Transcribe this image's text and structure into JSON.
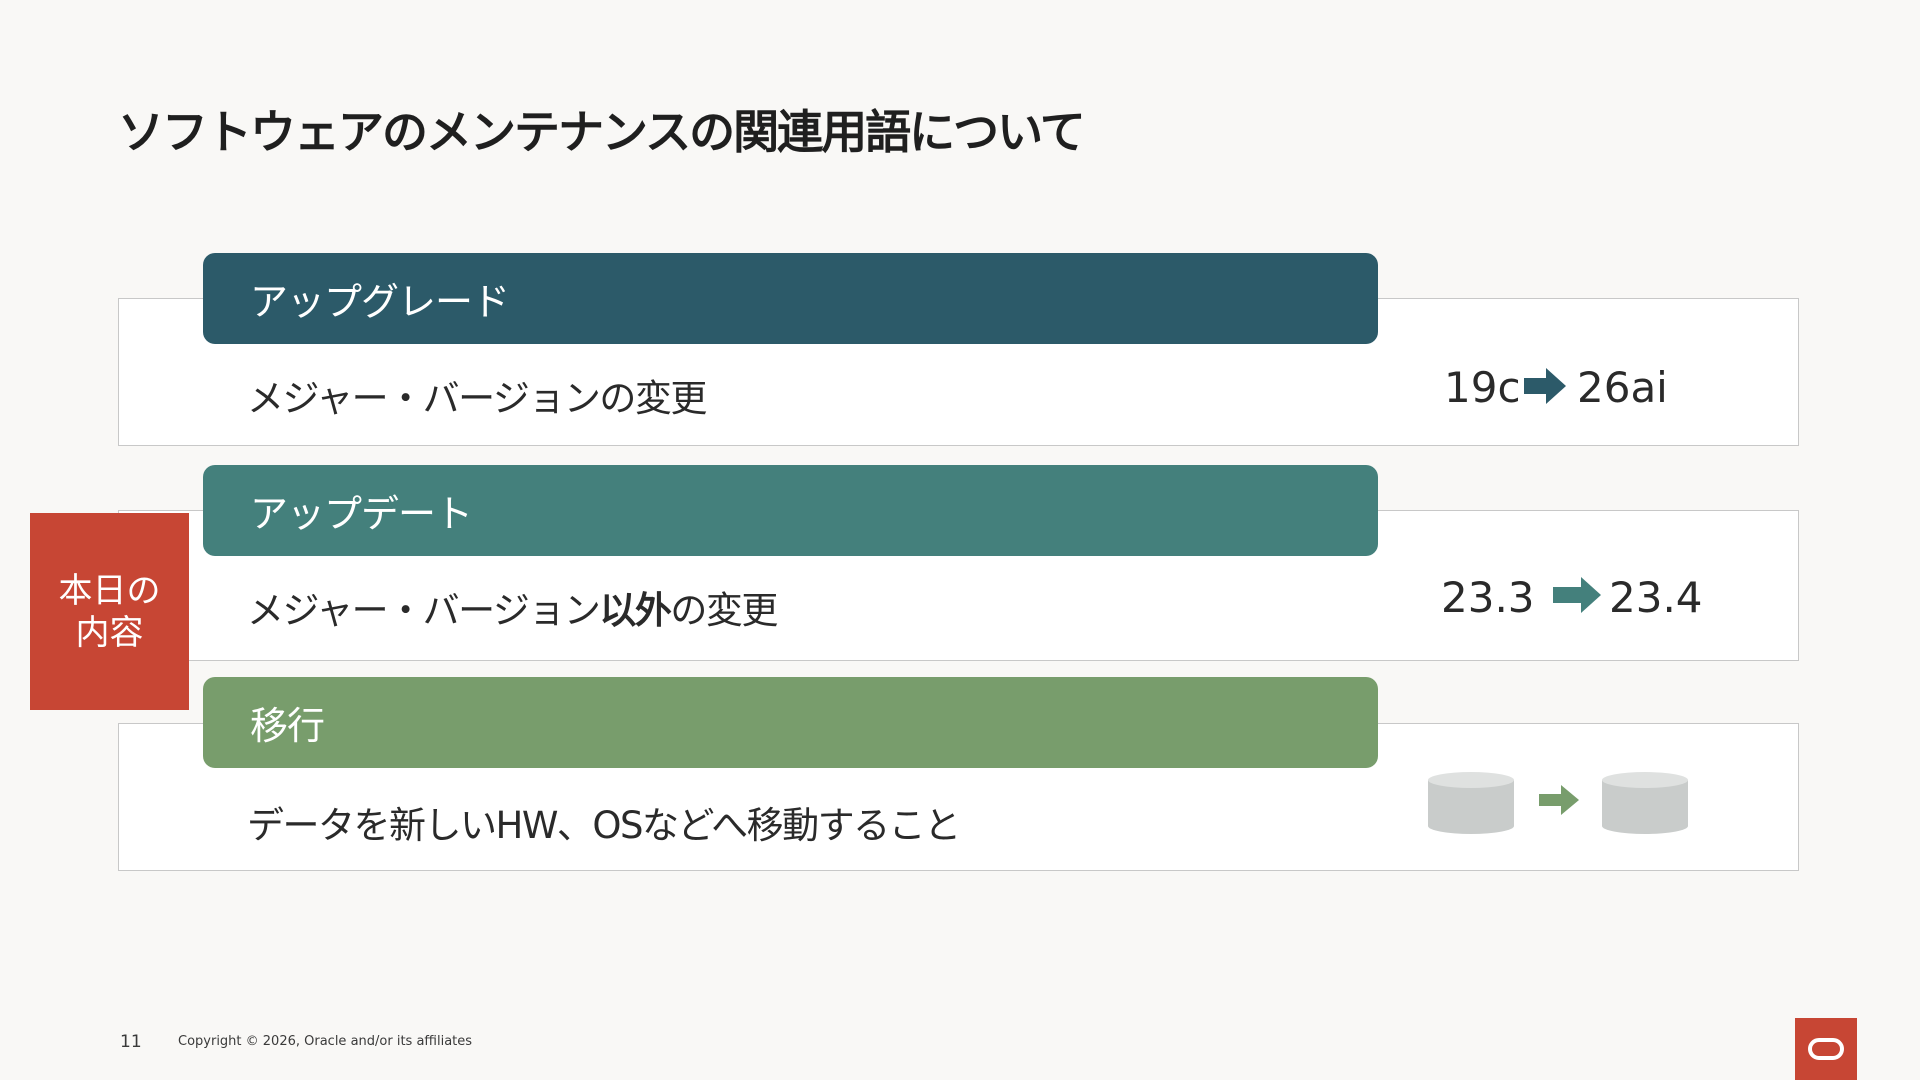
{
  "title": "ソフトウェアのメンテナンスの関連用語について",
  "side_label": {
    "line1": "本日の",
    "line2": "内容"
  },
  "rows": [
    {
      "header": "アップグレード",
      "header_color": "#2c5a69",
      "description": "メジャー・バージョンの変更",
      "from": "19c",
      "to": "26ai",
      "arrow_color": "#2c5a69"
    },
    {
      "header": "アップデート",
      "header_color": "#44807c",
      "description_before": "メジャー・バージョン",
      "description_bold": "以外",
      "description_after": "の変更",
      "from": "23.3",
      "to": "23.4",
      "arrow_color": "#44807c"
    },
    {
      "header": "移行",
      "header_color": "#789d6c",
      "description": "データを新しいHW、OSなどへ移動すること",
      "arrow_color": "#789d6c",
      "icons": [
        "database-icon",
        "arrow-right-icon",
        "database-icon"
      ]
    }
  ],
  "footer": {
    "page_number": "11",
    "copyright": "Copyright © 2026, Oracle and/or its affiliates"
  },
  "logo": "oracle-logo-icon",
  "colors": {
    "accent_red": "#c74634",
    "database_gray": "#c9cccb"
  }
}
